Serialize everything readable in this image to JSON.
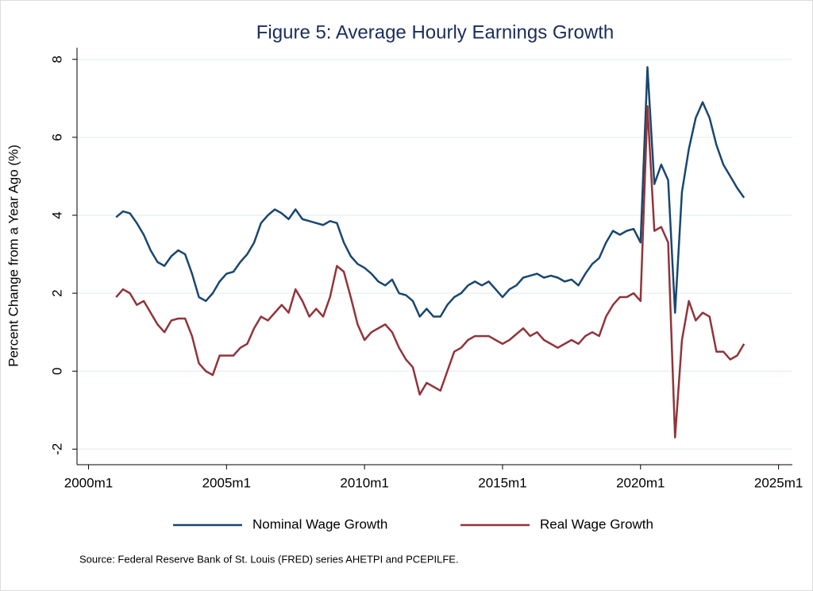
{
  "chart_data": {
    "type": "line",
    "title": "Figure 5: Average Hourly Earnings Growth",
    "y_label": "Percent Change from a Year Ago (%)",
    "note": "Source: Federal Reserve Bank of St. Louis (FRED) series AHETPI and PCEPILFE.",
    "x": [
      492,
      495,
      498,
      501,
      504,
      507,
      510,
      513,
      516,
      519,
      522,
      525,
      528,
      531,
      534,
      537,
      540,
      543,
      546,
      549,
      552,
      555,
      558,
      561,
      564,
      567,
      570,
      573,
      576,
      579,
      582,
      585,
      588,
      591,
      594,
      597,
      600,
      603,
      606,
      609,
      612,
      615,
      618,
      621,
      624,
      627,
      630,
      633,
      636,
      639,
      642,
      645,
      648,
      651,
      654,
      657,
      660,
      663,
      666,
      669,
      672,
      675,
      678,
      681,
      684,
      687,
      690,
      693,
      696,
      699,
      702,
      705,
      708,
      711,
      714,
      717,
      720,
      723,
      726,
      729,
      732,
      735,
      738,
      741,
      744,
      747,
      750,
      753,
      756,
      759,
      762,
      765
    ],
    "series": [
      {
        "name": "Nominal Wage Growth",
        "color": "#1a476f",
        "values": [
          3.95,
          4.1,
          4.05,
          3.8,
          3.5,
          3.1,
          2.8,
          2.7,
          2.95,
          3.1,
          3.0,
          2.5,
          1.9,
          1.8,
          2.0,
          2.3,
          2.5,
          2.55,
          2.8,
          3.0,
          3.3,
          3.8,
          4.0,
          4.15,
          4.05,
          3.9,
          4.15,
          3.9,
          3.85,
          3.8,
          3.75,
          3.85,
          3.8,
          3.3,
          2.95,
          2.75,
          2.65,
          2.5,
          2.3,
          2.2,
          2.35,
          2.0,
          1.95,
          1.8,
          1.4,
          1.6,
          1.4,
          1.4,
          1.7,
          1.9,
          2.0,
          2.2,
          2.3,
          2.2,
          2.3,
          2.1,
          1.9,
          2.1,
          2.2,
          2.4,
          2.45,
          2.5,
          2.4,
          2.45,
          2.4,
          2.3,
          2.35,
          2.2,
          2.5,
          2.75,
          2.9,
          3.3,
          3.6,
          3.5,
          3.6,
          3.65,
          3.3,
          7.8,
          4.8,
          5.3,
          4.9,
          1.5,
          4.6,
          5.7,
          6.5,
          6.9,
          6.5,
          5.8,
          5.3,
          5.0,
          4.7,
          4.45
        ]
      },
      {
        "name": "Real Wage Growth",
        "color": "#90353b",
        "values": [
          1.9,
          2.1,
          2.0,
          1.7,
          1.8,
          1.5,
          1.2,
          1.0,
          1.3,
          1.35,
          1.35,
          0.9,
          0.2,
          0.0,
          -0.1,
          0.4,
          0.4,
          0.4,
          0.6,
          0.7,
          1.1,
          1.4,
          1.3,
          1.5,
          1.7,
          1.5,
          2.1,
          1.8,
          1.4,
          1.6,
          1.4,
          1.9,
          2.7,
          2.55,
          1.9,
          1.2,
          0.8,
          1.0,
          1.1,
          1.2,
          1.0,
          0.6,
          0.3,
          0.1,
          -0.6,
          -0.3,
          -0.4,
          -0.5,
          0.0,
          0.5,
          0.6,
          0.8,
          0.9,
          0.9,
          0.9,
          0.8,
          0.7,
          0.8,
          0.95,
          1.1,
          0.9,
          1.0,
          0.8,
          0.7,
          0.6,
          0.7,
          0.8,
          0.7,
          0.9,
          1.0,
          0.9,
          1.4,
          1.7,
          1.9,
          1.9,
          2.0,
          1.8,
          6.8,
          3.6,
          3.7,
          3.3,
          -1.7,
          0.8,
          1.8,
          1.3,
          1.5,
          1.4,
          0.5,
          0.5,
          0.3,
          0.4,
          0.7
        ]
      }
    ],
    "xlim": [
      475,
      786
    ],
    "xticks": [
      {
        "value": 480,
        "label": "2000m1"
      },
      {
        "value": 540,
        "label": "2005m1"
      },
      {
        "value": 600,
        "label": "2010m1"
      },
      {
        "value": 660,
        "label": "2015m1"
      },
      {
        "value": 720,
        "label": "2020m1"
      },
      {
        "value": 780,
        "label": "2025m1"
      }
    ],
    "ylim": [
      -2.4,
      8.3
    ],
    "yticks": [
      -2,
      0,
      2,
      4,
      6,
      8
    ],
    "grid": true
  }
}
